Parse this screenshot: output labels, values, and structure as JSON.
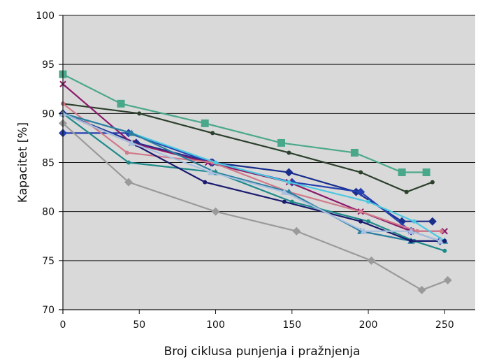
{
  "chart_data": {
    "type": "line",
    "title": "",
    "xlabel": "Broj ciklusa punjenja i pražnjenja",
    "ylabel": "Kapacitet [%]",
    "xlim": [
      0,
      270
    ],
    "ylim": [
      70,
      100
    ],
    "xticks": [
      0,
      50,
      100,
      150,
      200,
      250
    ],
    "yticks": [
      70,
      75,
      80,
      85,
      90,
      95,
      100
    ],
    "grid": "horizontal",
    "legend": "none",
    "plot_background": "#d9d9d9",
    "series": [
      {
        "color": "#4aa88a",
        "marker": "square",
        "points": [
          [
            0,
            94
          ],
          [
            38,
            91
          ],
          [
            93,
            89
          ],
          [
            143,
            87
          ],
          [
            191,
            86
          ],
          [
            222,
            84
          ],
          [
            238,
            84
          ]
        ]
      },
      {
        "color": "#2b3f2b",
        "marker": "dot",
        "points": [
          [
            0,
            91
          ],
          [
            50,
            90
          ],
          [
            98,
            88
          ],
          [
            148,
            86
          ],
          [
            195,
            84
          ],
          [
            225,
            82
          ],
          [
            242,
            83
          ]
        ]
      },
      {
        "color": "#1a2e8c",
        "marker": "diamond",
        "points": [
          [
            0,
            90
          ],
          [
            48,
            87
          ],
          [
            98,
            85
          ],
          [
            148,
            84
          ],
          [
            192,
            82
          ],
          [
            222,
            79
          ],
          [
            242,
            79
          ]
        ]
      },
      {
        "color": "#2540b0",
        "marker": "diamond",
        "points": [
          [
            0,
            88
          ],
          [
            43,
            88
          ],
          [
            97,
            85
          ],
          [
            150,
            83
          ],
          [
            195,
            82
          ],
          [
            228,
            78
          ],
          [
            247,
            77
          ]
        ]
      },
      {
        "color": "#8b1a6b",
        "marker": "x",
        "points": [
          [
            0,
            93
          ],
          [
            45,
            87
          ],
          [
            95,
            85
          ],
          [
            148,
            83
          ],
          [
            195,
            80
          ],
          [
            228,
            78
          ],
          [
            250,
            78
          ]
        ]
      },
      {
        "color": "#d07a8a",
        "marker": "dot",
        "points": [
          [
            0,
            91
          ],
          [
            42,
            86
          ],
          [
            98,
            85
          ],
          [
            148,
            82
          ],
          [
            195,
            80
          ],
          [
            232,
            78
          ],
          [
            248,
            78
          ]
        ]
      },
      {
        "color": "#4cc8e0",
        "marker": "dot",
        "points": [
          [
            0,
            90
          ],
          [
            45,
            88
          ],
          [
            100,
            85
          ],
          [
            148,
            83
          ],
          [
            200,
            81
          ],
          [
            230,
            79
          ],
          [
            250,
            77
          ]
        ]
      },
      {
        "color": "#2a7fa0",
        "marker": "triangle",
        "points": [
          [
            0,
            90
          ],
          [
            45,
            88
          ],
          [
            100,
            84
          ],
          [
            148,
            82
          ],
          [
            195,
            78
          ],
          [
            228,
            77
          ],
          [
            250,
            77
          ]
        ]
      },
      {
        "color": "#1f8a8a",
        "marker": "dot",
        "points": [
          [
            0,
            90
          ],
          [
            43,
            85
          ],
          [
            100,
            84
          ],
          [
            150,
            81
          ],
          [
            200,
            79
          ],
          [
            230,
            77
          ],
          [
            250,
            76
          ]
        ]
      },
      {
        "color": "#1a1a70",
        "marker": "dot",
        "points": [
          [
            0,
            90
          ],
          [
            45,
            87
          ],
          [
            93,
            83
          ],
          [
            145,
            81
          ],
          [
            195,
            79
          ],
          [
            228,
            77
          ],
          [
            250,
            77
          ]
        ]
      },
      {
        "color": "#a8c0e0",
        "marker": "triangle",
        "points": [
          [
            0,
            90
          ],
          [
            45,
            87
          ],
          [
            97,
            84
          ],
          [
            145,
            82
          ],
          [
            197,
            78
          ],
          [
            228,
            78
          ],
          [
            247,
            77
          ]
        ]
      },
      {
        "color": "#9a9a9a",
        "marker": "diamond",
        "points": [
          [
            0,
            89
          ],
          [
            43,
            83
          ],
          [
            100,
            80
          ],
          [
            153,
            78
          ],
          [
            202,
            75
          ],
          [
            235,
            72
          ],
          [
            252,
            73
          ]
        ]
      }
    ]
  }
}
